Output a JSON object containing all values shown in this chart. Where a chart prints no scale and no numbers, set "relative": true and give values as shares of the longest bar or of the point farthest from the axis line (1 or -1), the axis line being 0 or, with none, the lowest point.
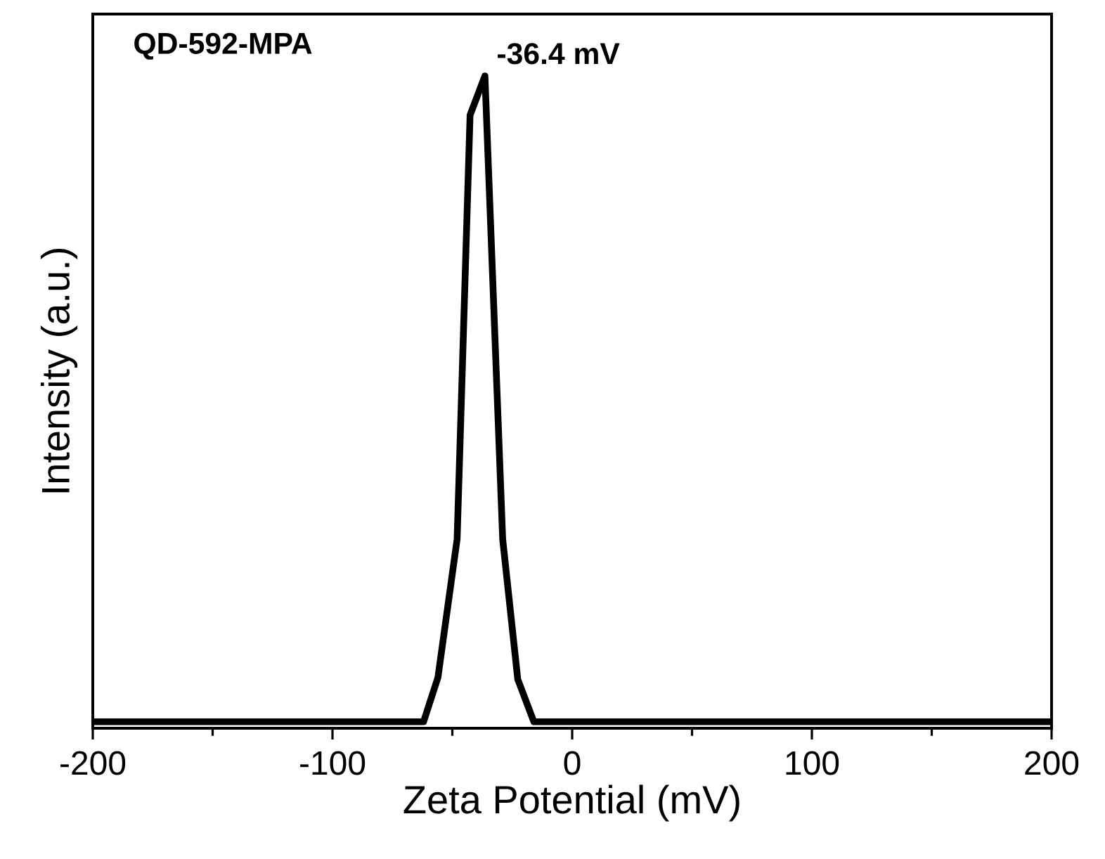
{
  "chart_data": {
    "type": "line",
    "relative": true,
    "xlabel": "Zeta Potential (mV)",
    "ylabel": "Intensity (a.u.)",
    "x": [
      -200,
      -62,
      -56,
      -48,
      -42.6,
      -36.4,
      -29,
      -22.7,
      -16,
      200
    ],
    "series": [
      {
        "color": "#000000",
        "values": [
          0.01,
          0.01,
          0.078,
          0.29,
          0.94,
          1,
          0.29,
          0.075,
          0.01,
          0.01
        ]
      }
    ],
    "xlim": [
      -200,
      200
    ],
    "xticks": [
      -200,
      -100,
      0,
      100,
      200
    ],
    "annotations": [
      "QD-592-MPA",
      {
        "text": "-36.4 mV",
        "x": -36.4,
        "y": 1
      }
    ],
    "grid": false,
    "marker": "none",
    "line_style": "solid"
  }
}
